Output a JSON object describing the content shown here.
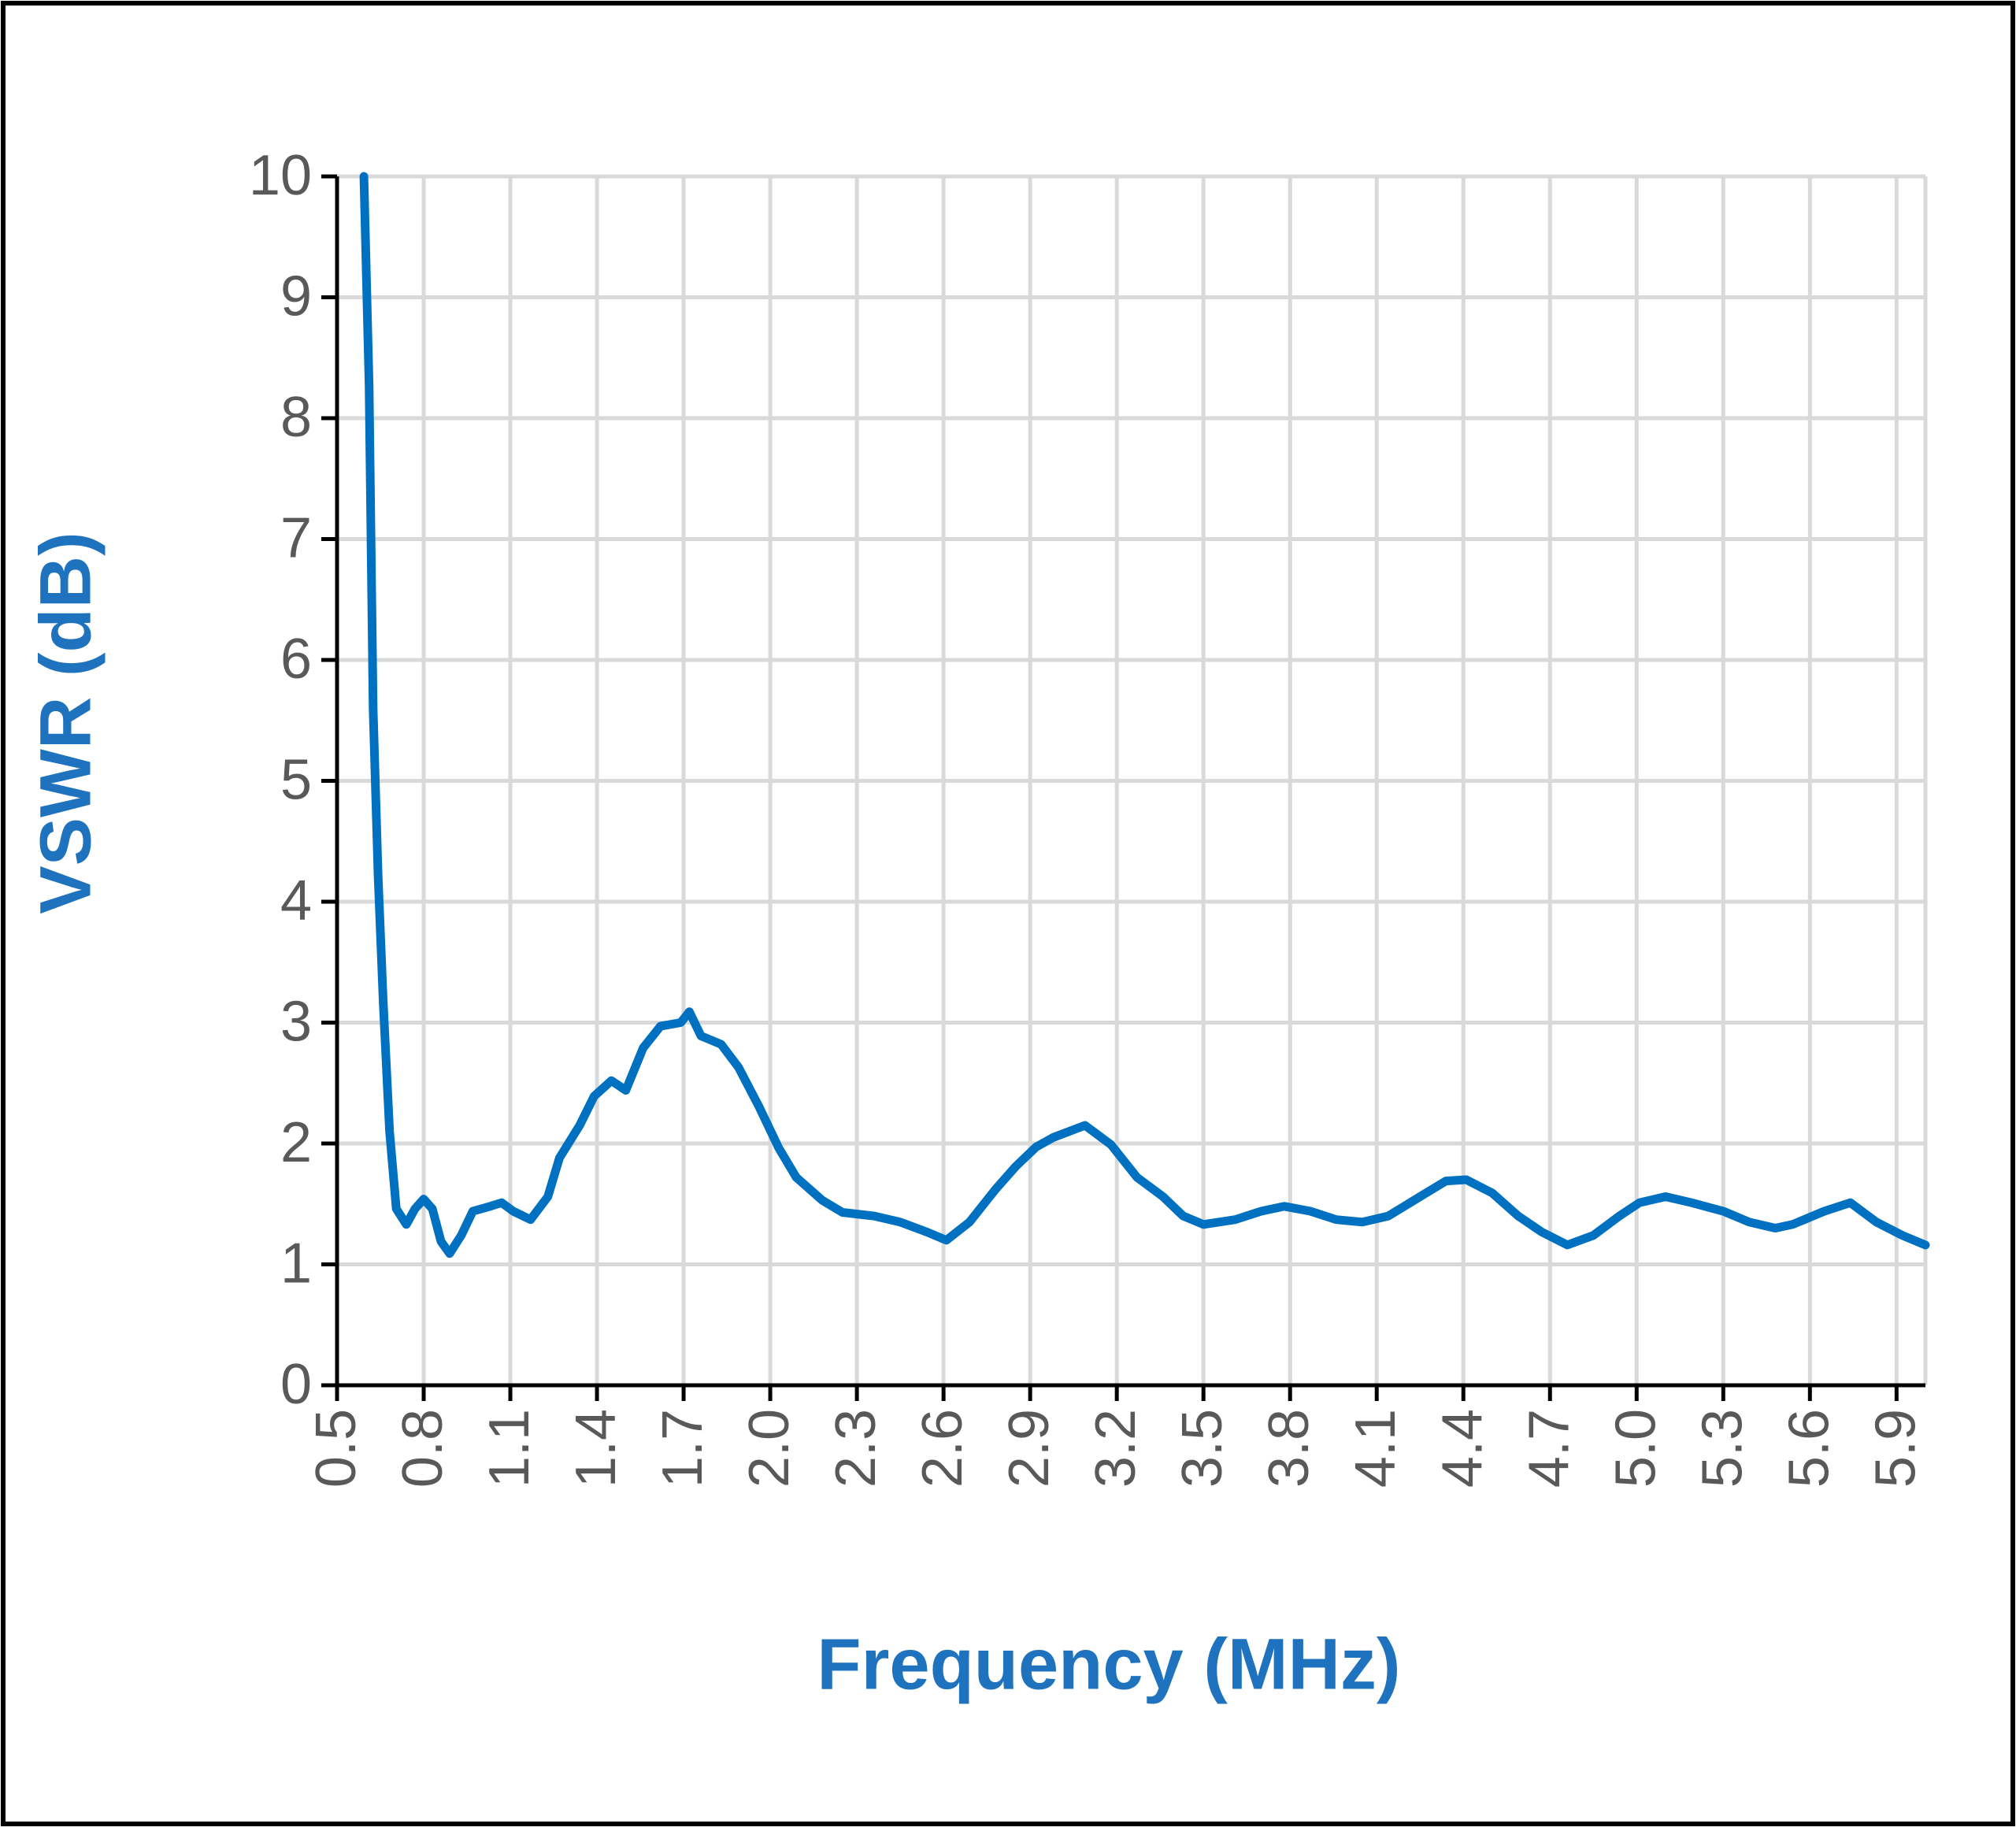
{
  "chart_data": {
    "type": "line",
    "x_label": "Frequency (MHz)",
    "y_label": "VSWR (dB)",
    "xlim": [
      0.5,
      6.0
    ],
    "ylim": [
      0,
      10
    ],
    "xticks": [
      0.5,
      0.8,
      1.1,
      1.4,
      1.7,
      {
        "value": 2,
        "label": "2.0"
      },
      2.3,
      2.6,
      2.9,
      3.2,
      3.5,
      3.8,
      4.1,
      4.4,
      4.7,
      {
        "value": 5,
        "label": "5.0"
      },
      5.3,
      5.6,
      5.9
    ],
    "yticks": [
      0,
      1,
      2,
      3,
      4,
      5,
      6,
      7,
      8,
      9,
      10
    ],
    "grid": true,
    "series": [
      {
        "color": "#0070c0",
        "x": [
          0.593,
          0.611,
          0.625,
          0.642,
          0.66,
          0.682,
          0.705,
          0.74,
          0.77,
          0.8,
          0.83,
          0.86,
          0.89,
          0.93,
          0.97,
          1.03,
          1.07,
          1.11,
          1.17,
          1.23,
          1.27,
          1.34,
          1.39,
          1.45,
          1.5,
          1.56,
          1.62,
          1.69,
          1.72,
          1.76,
          1.83,
          1.89,
          1.96,
          2.03,
          2.09,
          2.18,
          2.25,
          2.36,
          2.45,
          2.54,
          2.61,
          2.69,
          2.78,
          2.85,
          2.92,
          2.98,
          3.09,
          3.18,
          3.27,
          3.36,
          3.43,
          3.5,
          3.61,
          3.7,
          3.78,
          3.87,
          3.96,
          4.05,
          4.14,
          4.25,
          4.34,
          4.41,
          4.5,
          4.59,
          4.67,
          4.76,
          4.85,
          4.94,
          5.01,
          5.1,
          5.19,
          5.3,
          5.39,
          5.48,
          5.54,
          5.65,
          5.74,
          5.83,
          5.92,
          6.0
        ],
        "values": [
          10,
          8.27,
          5.6,
          4.22,
          3.16,
          2.1,
          1.46,
          1.33,
          1.46,
          1.54,
          1.46,
          1.19,
          1.09,
          1.24,
          1.44,
          1.48,
          1.51,
          1.44,
          1.37,
          1.56,
          1.88,
          2.15,
          2.39,
          2.52,
          2.44,
          2.79,
          2.97,
          3.0,
          3.09,
          2.89,
          2.82,
          2.63,
          2.31,
          1.96,
          1.72,
          1.53,
          1.43,
          1.4,
          1.35,
          1.27,
          1.2,
          1.35,
          1.62,
          1.81,
          1.97,
          2.05,
          2.15,
          1.99,
          1.72,
          1.56,
          1.4,
          1.33,
          1.37,
          1.44,
          1.48,
          1.44,
          1.37,
          1.35,
          1.4,
          1.56,
          1.69,
          1.7,
          1.59,
          1.4,
          1.27,
          1.16,
          1.24,
          1.4,
          1.51,
          1.56,
          1.51,
          1.44,
          1.35,
          1.3,
          1.33,
          1.44,
          1.51,
          1.35,
          1.24,
          1.16
        ]
      }
    ]
  }
}
